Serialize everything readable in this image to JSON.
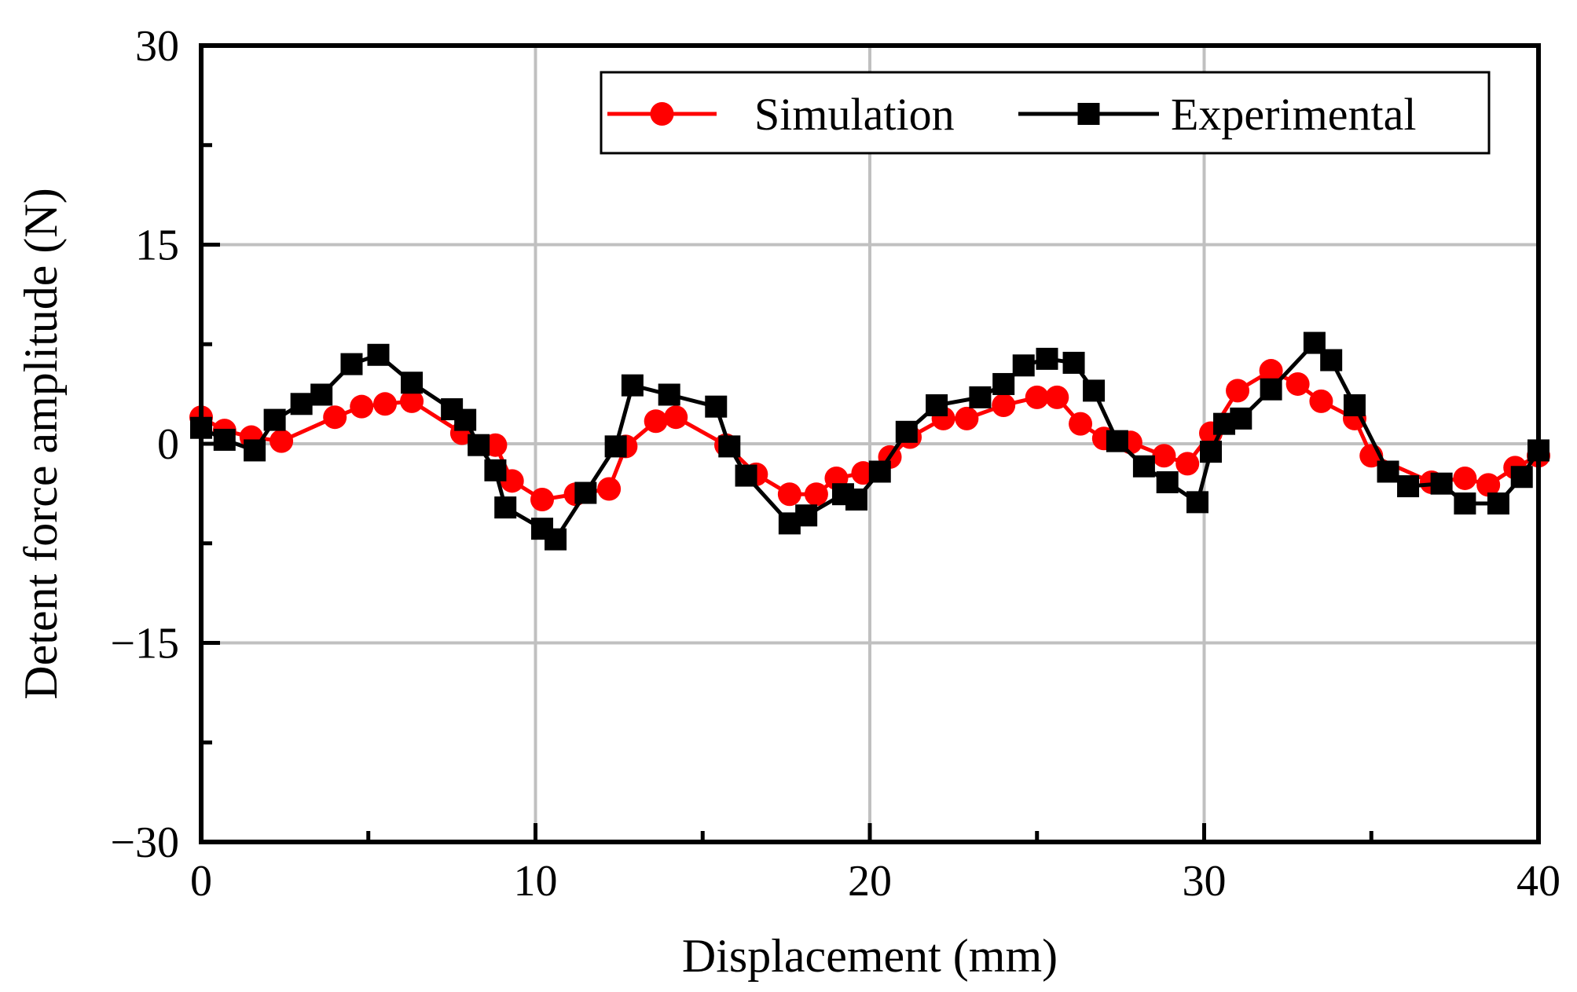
{
  "chart_data": {
    "type": "line",
    "title": "",
    "xlabel": "Displacement (mm)",
    "ylabel": "Detent force amplitude (N)",
    "xlim": [
      0,
      40
    ],
    "ylim": [
      -30,
      30
    ],
    "xticks": [
      0,
      10,
      20,
      30,
      40
    ],
    "xtick_labels": [
      "0",
      "10",
      "20",
      "30",
      "40"
    ],
    "yticks": [
      -30,
      -15,
      0,
      15,
      30
    ],
    "ytick_labels": [
      "−30",
      "−15",
      "0",
      "15",
      "30"
    ],
    "grid": true,
    "legend_position": "top-right",
    "series": [
      {
        "name": "Simulation",
        "color": "#ff0000",
        "marker": "circle",
        "x": [
          0.0,
          0.7,
          1.5,
          2.4,
          4.0,
          4.8,
          5.5,
          6.3,
          7.8,
          8.8,
          9.3,
          10.2,
          11.2,
          12.2,
          12.7,
          13.6,
          14.2,
          15.7,
          16.6,
          17.6,
          18.4,
          19.0,
          19.8,
          20.6,
          21.2,
          22.2,
          22.9,
          24.0,
          25.0,
          25.6,
          26.3,
          27.0,
          27.8,
          28.8,
          29.5,
          30.2,
          31.0,
          32.0,
          32.8,
          33.5,
          34.5,
          35.0,
          36.8,
          37.8,
          38.5,
          39.3,
          40.0
        ],
        "y": [
          2.0,
          1.0,
          0.5,
          0.2,
          2.0,
          2.8,
          3.0,
          3.2,
          0.8,
          -0.1,
          -2.8,
          -4.2,
          -3.8,
          -3.4,
          -0.2,
          1.7,
          2.0,
          -0.1,
          -2.3,
          -3.8,
          -3.8,
          -2.6,
          -2.2,
          -1.0,
          0.5,
          1.9,
          1.9,
          2.9,
          3.5,
          3.5,
          1.5,
          0.4,
          0.1,
          -0.9,
          -1.5,
          0.8,
          4.0,
          5.5,
          4.5,
          3.2,
          1.9,
          -0.9,
          -2.9,
          -2.6,
          -3.1,
          -1.8,
          -0.9
        ]
      },
      {
        "name": "Experimental",
        "color": "#000000",
        "marker": "square",
        "x": [
          0.0,
          0.7,
          1.6,
          2.2,
          3.0,
          3.6,
          4.5,
          5.3,
          6.3,
          7.5,
          7.9,
          8.3,
          8.8,
          9.1,
          10.2,
          10.6,
          11.5,
          12.4,
          12.9,
          14.0,
          15.4,
          15.8,
          16.3,
          17.6,
          18.1,
          19.2,
          19.6,
          20.3,
          21.1,
          22.0,
          23.3,
          24.0,
          24.6,
          25.3,
          26.1,
          26.7,
          27.4,
          28.2,
          28.9,
          29.8,
          30.2,
          30.6,
          31.1,
          32.0,
          33.3,
          33.8,
          34.5,
          35.5,
          36.1,
          37.1,
          37.8,
          38.8,
          39.5,
          40.0
        ],
        "y": [
          1.2,
          0.3,
          -0.5,
          1.8,
          3.0,
          3.7,
          6.0,
          6.7,
          4.6,
          2.6,
          1.8,
          -0.1,
          -2.0,
          -4.8,
          -6.4,
          -7.2,
          -3.7,
          -0.2,
          4.4,
          3.7,
          2.8,
          -0.2,
          -2.4,
          -6.0,
          -5.4,
          -3.8,
          -4.2,
          -2.1,
          0.9,
          2.9,
          3.5,
          4.5,
          5.9,
          6.4,
          6.1,
          4.0,
          0.2,
          -1.7,
          -2.9,
          -4.4,
          -0.6,
          1.5,
          1.9,
          4.1,
          7.6,
          6.3,
          2.9,
          -2.1,
          -3.2,
          -3.0,
          -4.5,
          -4.5,
          -2.5,
          -0.5
        ]
      }
    ]
  }
}
